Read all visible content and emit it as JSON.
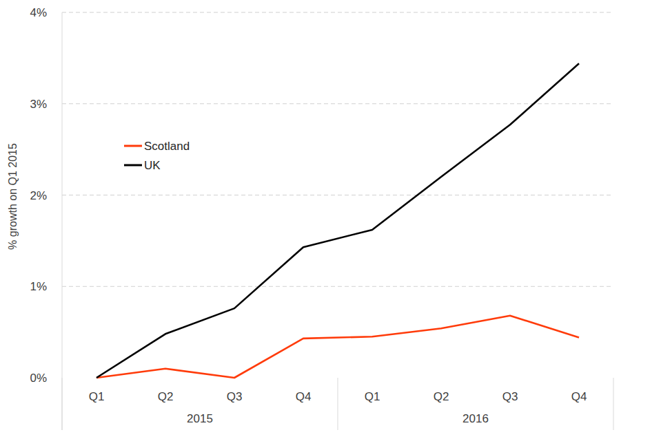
{
  "chart_data": {
    "type": "line",
    "y_label": "% growth on Q1 2015",
    "categories": [
      "Q1",
      "Q2",
      "Q3",
      "Q4",
      "Q1",
      "Q2",
      "Q3",
      "Q4"
    ],
    "groups": [
      {
        "label": "2015",
        "count": 4
      },
      {
        "label": "2016",
        "count": 4
      }
    ],
    "series": [
      {
        "name": "Scotland",
        "color": "#ff3b0a",
        "values": [
          0,
          0.1,
          0.0,
          0.43,
          0.45,
          0.54,
          0.68,
          0.44
        ]
      },
      {
        "name": "UK",
        "color": "#000000",
        "values": [
          0,
          0.48,
          0.76,
          1.43,
          1.62,
          2.2,
          2.77,
          3.44
        ]
      }
    ],
    "ylim": [
      0,
      4
    ],
    "yticks": [
      {
        "value": 0,
        "label": "0%"
      },
      {
        "value": 1,
        "label": "1%"
      },
      {
        "value": 2,
        "label": "2%"
      },
      {
        "value": 3,
        "label": "3%"
      },
      {
        "value": 4,
        "label": "4%"
      }
    ],
    "grid": true,
    "legend": "left"
  }
}
